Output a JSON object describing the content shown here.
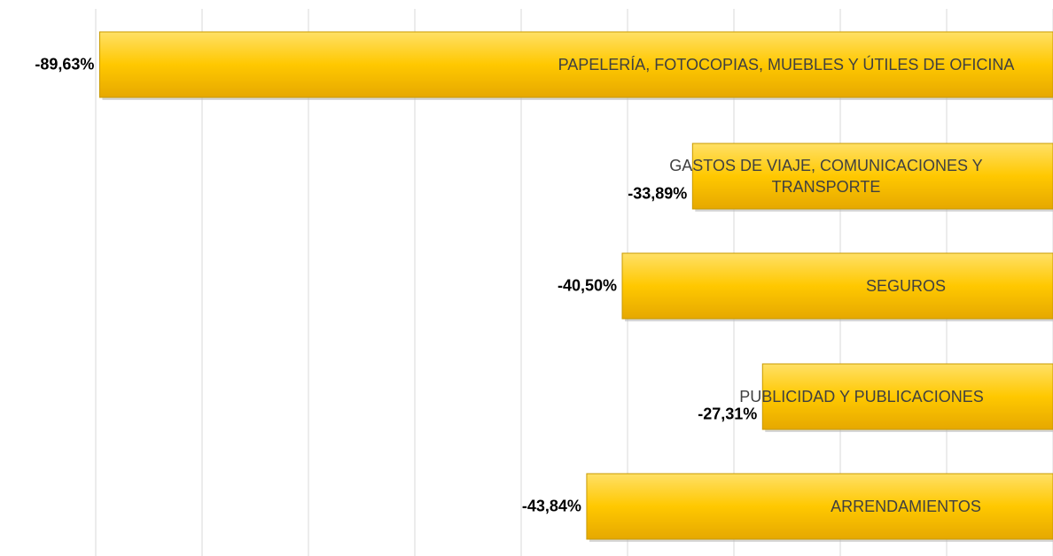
{
  "chart_data": {
    "type": "bar",
    "orientation": "horizontal",
    "categories": [
      "PAPELERÍA, FOTOCOPIAS, MUEBLES Y ÚTILES DE OFICINA",
      "GASTOS DE VIAJE, COMUNICACIONES Y TRANSPORTE",
      "SEGUROS",
      "PUBLICIDAD Y PUBLICACIONES",
      "ARRENDAMIENTOS"
    ],
    "values": [
      -89.63,
      -33.89,
      -40.5,
      -27.31,
      -43.84
    ],
    "value_labels": [
      "-89,63%",
      "-33,89%",
      "-40,50%",
      "-27,31%",
      "-43,84%"
    ],
    "color": "#FFC800",
    "xlim": [
      -90,
      0
    ],
    "xticks": [
      -90,
      -80,
      -70,
      -60,
      -50,
      -40,
      -30,
      -20,
      -10,
      0
    ],
    "grid": true
  }
}
